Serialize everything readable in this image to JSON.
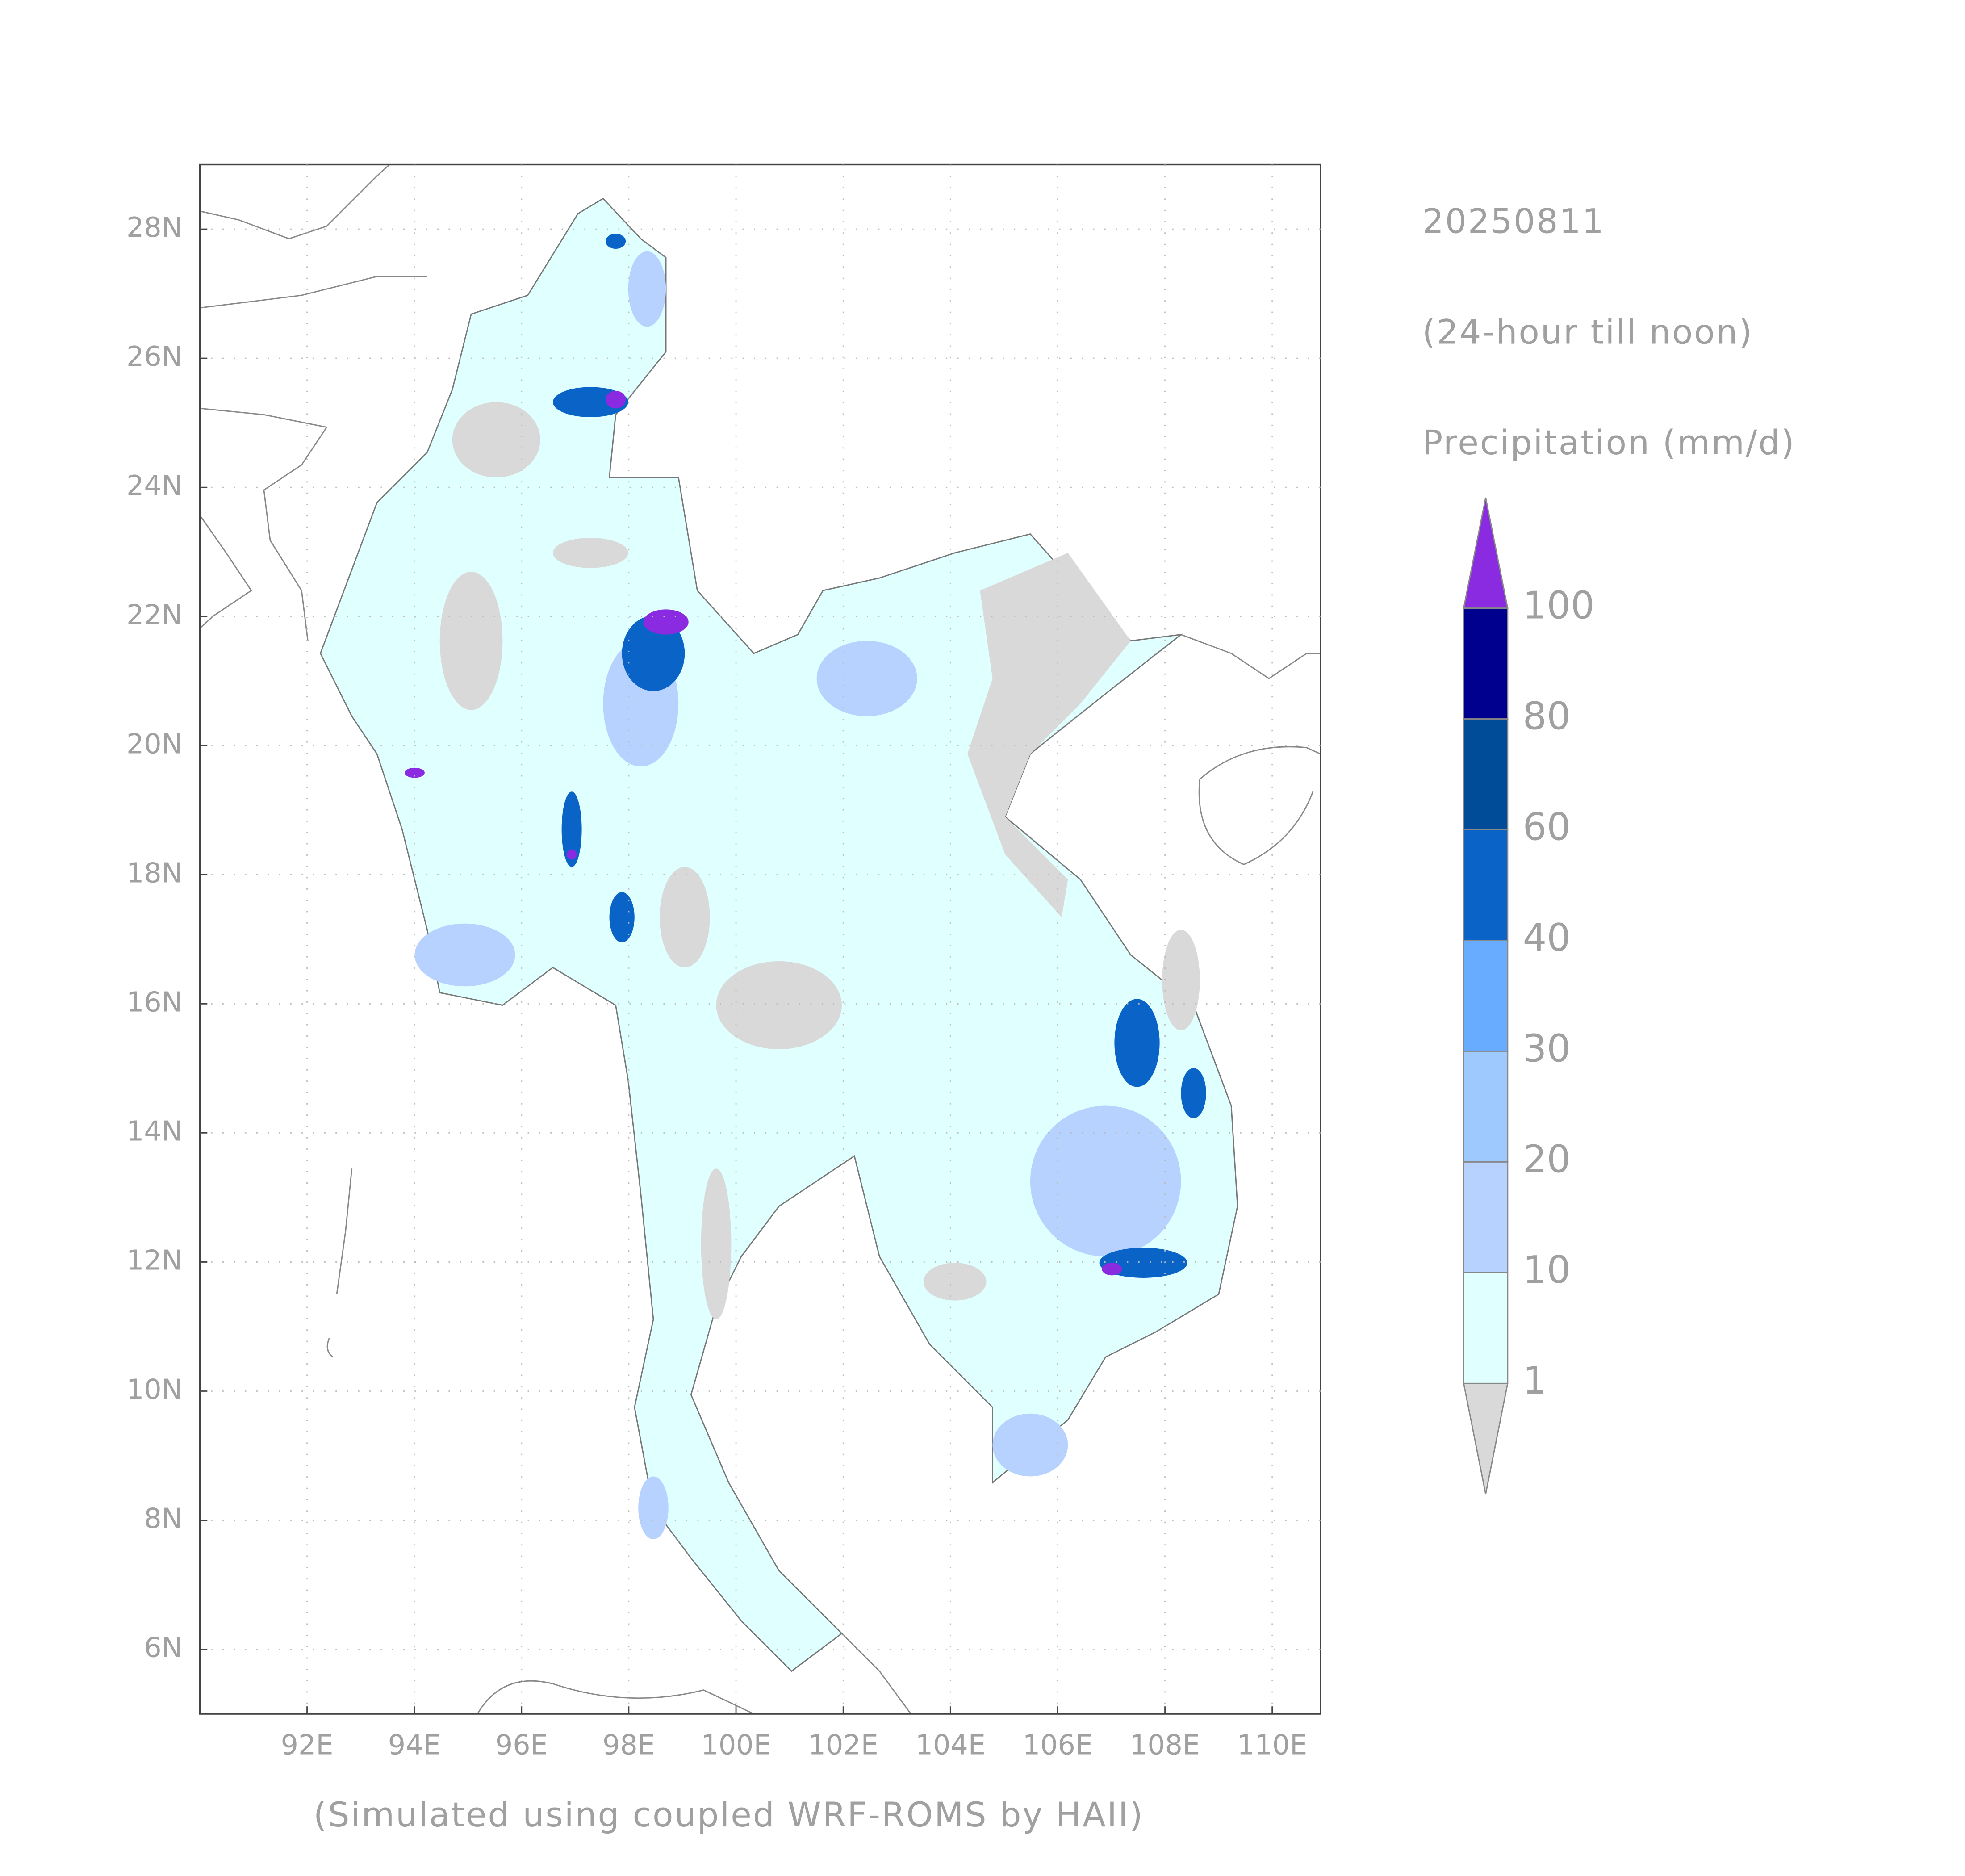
{
  "map": {
    "date": "20250811",
    "period": "(24-hour till noon)",
    "variable": "Precipitation (mm/d)",
    "caption": "(Simulated using coupled WRF-ROMS by HAII)",
    "lonlim": [
      90,
      110.9
    ],
    "latlim": [
      5,
      29
    ],
    "lon_ticks": [
      {
        "value": 92,
        "label": "92E"
      },
      {
        "value": 94,
        "label": "94E"
      },
      {
        "value": 96,
        "label": "96E"
      },
      {
        "value": 98,
        "label": "98E"
      },
      {
        "value": 100,
        "label": "100E"
      },
      {
        "value": 102,
        "label": "102E"
      },
      {
        "value": 104,
        "label": "104E"
      },
      {
        "value": 106,
        "label": "106E"
      },
      {
        "value": 108,
        "label": "108E"
      },
      {
        "value": 110,
        "label": "110E"
      }
    ],
    "lat_ticks": [
      {
        "value": 6,
        "label": "6N"
      },
      {
        "value": 8,
        "label": "8N"
      },
      {
        "value": 10,
        "label": "10N"
      },
      {
        "value": 12,
        "label": "12N"
      },
      {
        "value": 14,
        "label": "14N"
      },
      {
        "value": 16,
        "label": "16N"
      },
      {
        "value": 18,
        "label": "18N"
      },
      {
        "value": 20,
        "label": "20N"
      },
      {
        "value": 22,
        "label": "22N"
      },
      {
        "value": 24,
        "label": "24N"
      },
      {
        "value": 26,
        "label": "26N"
      },
      {
        "value": 28,
        "label": "28N"
      }
    ],
    "colorbar": {
      "levels": [
        1,
        10,
        20,
        30,
        40,
        60,
        80,
        100
      ],
      "colors": [
        "#d9d9d9",
        "#e0ffff",
        "#b8d2ff",
        "#9ec9ff",
        "#68acff",
        "#0a64c8",
        "#004c99",
        "#00008f",
        "#8a2be2"
      ]
    }
  }
}
